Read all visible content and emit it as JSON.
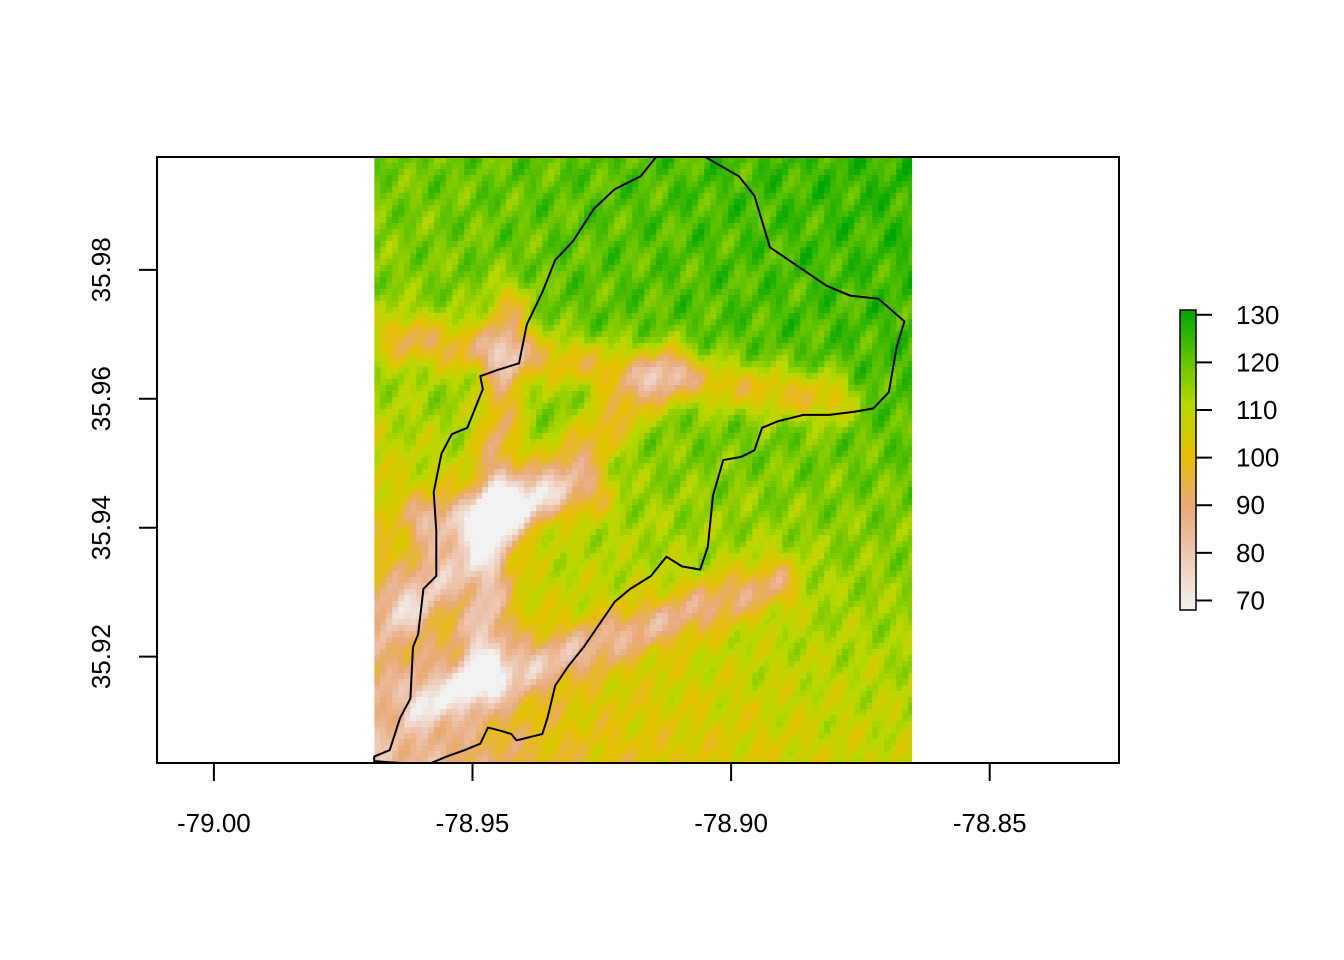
{
  "chart_data": {
    "type": "heatmap",
    "title": "",
    "xlabel": "",
    "ylabel": "",
    "xlim": [
      -79.011,
      -78.825
    ],
    "ylim": [
      35.9035,
      35.9975
    ],
    "raster_extent": {
      "x": [
        -78.969,
        -78.865
      ],
      "y": [
        35.9035,
        35.9975
      ]
    },
    "x_ticks": [
      -79.0,
      -78.95,
      -78.9,
      -78.85
    ],
    "x_tick_labels": [
      "-79.00",
      "-78.95",
      "-78.90",
      "-78.85"
    ],
    "y_ticks": [
      35.92,
      35.94,
      35.96,
      35.98
    ],
    "y_tick_labels": [
      "35.92",
      "35.94",
      "35.96",
      "35.98"
    ],
    "legend": {
      "position": "right",
      "range": [
        68,
        131
      ],
      "ticks": [
        70,
        80,
        90,
        100,
        110,
        120,
        130
      ],
      "tick_labels": [
        "70",
        "80",
        "90",
        "100",
        "110",
        "120",
        "130"
      ],
      "colors": [
        "#f2f2f2",
        "#eec9b5",
        "#e8a978",
        "#e6c000",
        "#b8d800",
        "#5fc200",
        "#00a600"
      ]
    },
    "boundary_outline": [
      [
        -78.969,
        35.9045
      ],
      [
        -78.966,
        35.9055
      ],
      [
        -78.964,
        35.9105
      ],
      [
        -78.962,
        35.9135
      ],
      [
        -78.9615,
        35.9215
      ],
      [
        -78.9605,
        35.9235
      ],
      [
        -78.9595,
        35.9305
      ],
      [
        -78.957,
        35.9325
      ],
      [
        -78.957,
        35.9395
      ],
      [
        -78.9575,
        35.9455
      ],
      [
        -78.956,
        35.9515
      ],
      [
        -78.954,
        35.9545
      ],
      [
        -78.951,
        35.9555
      ],
      [
        -78.9495,
        35.9585
      ],
      [
        -78.948,
        35.9615
      ],
      [
        -78.9485,
        35.9635
      ],
      [
        -78.945,
        35.9645
      ],
      [
        -78.941,
        35.9655
      ],
      [
        -78.9395,
        35.9715
      ],
      [
        -78.9365,
        35.9765
      ],
      [
        -78.934,
        35.9815
      ],
      [
        -78.9305,
        35.9845
      ],
      [
        -78.9265,
        35.9895
      ],
      [
        -78.9225,
        35.9925
      ],
      [
        -78.9175,
        35.9945
      ],
      [
        -78.9145,
        35.9975
      ],
      [
        -78.905,
        35.9975
      ],
      [
        -78.8985,
        35.9945
      ],
      [
        -78.8955,
        35.9915
      ],
      [
        -78.8925,
        35.9835
      ],
      [
        -78.887,
        35.9805
      ],
      [
        -78.8815,
        35.9775
      ],
      [
        -78.877,
        35.976
      ],
      [
        -78.8715,
        35.9755
      ],
      [
        -78.8665,
        35.972
      ],
      [
        -78.868,
        35.968
      ],
      [
        -78.8695,
        35.961
      ],
      [
        -78.8725,
        35.9585
      ],
      [
        -78.876,
        35.958
      ],
      [
        -78.881,
        35.9575
      ],
      [
        -78.886,
        35.9575
      ],
      [
        -78.891,
        35.9565
      ],
      [
        -78.894,
        35.9555
      ],
      [
        -78.8955,
        35.952
      ],
      [
        -78.898,
        35.951
      ],
      [
        -78.9015,
        35.9505
      ],
      [
        -78.9035,
        35.945
      ],
      [
        -78.9045,
        35.937
      ],
      [
        -78.906,
        35.9335
      ],
      [
        -78.9095,
        35.934
      ],
      [
        -78.9125,
        35.9355
      ],
      [
        -78.9155,
        35.9325
      ],
      [
        -78.9195,
        35.9305
      ],
      [
        -78.9225,
        35.9285
      ],
      [
        -78.9255,
        35.925
      ],
      [
        -78.9285,
        35.9215
      ],
      [
        -78.9315,
        35.9185
      ],
      [
        -78.934,
        35.9155
      ],
      [
        -78.9355,
        35.9105
      ],
      [
        -78.9365,
        35.908
      ],
      [
        -78.939,
        35.9075
      ],
      [
        -78.9415,
        35.907
      ],
      [
        -78.9425,
        35.908
      ],
      [
        -78.9445,
        35.9085
      ],
      [
        -78.947,
        35.909
      ],
      [
        -78.9485,
        35.9065
      ],
      [
        -78.9515,
        35.9055
      ],
      [
        -78.955,
        35.9045
      ],
      [
        -78.958,
        35.9035
      ],
      [
        -78.964,
        35.9035
      ],
      [
        -78.969,
        35.9038
      ]
    ]
  }
}
